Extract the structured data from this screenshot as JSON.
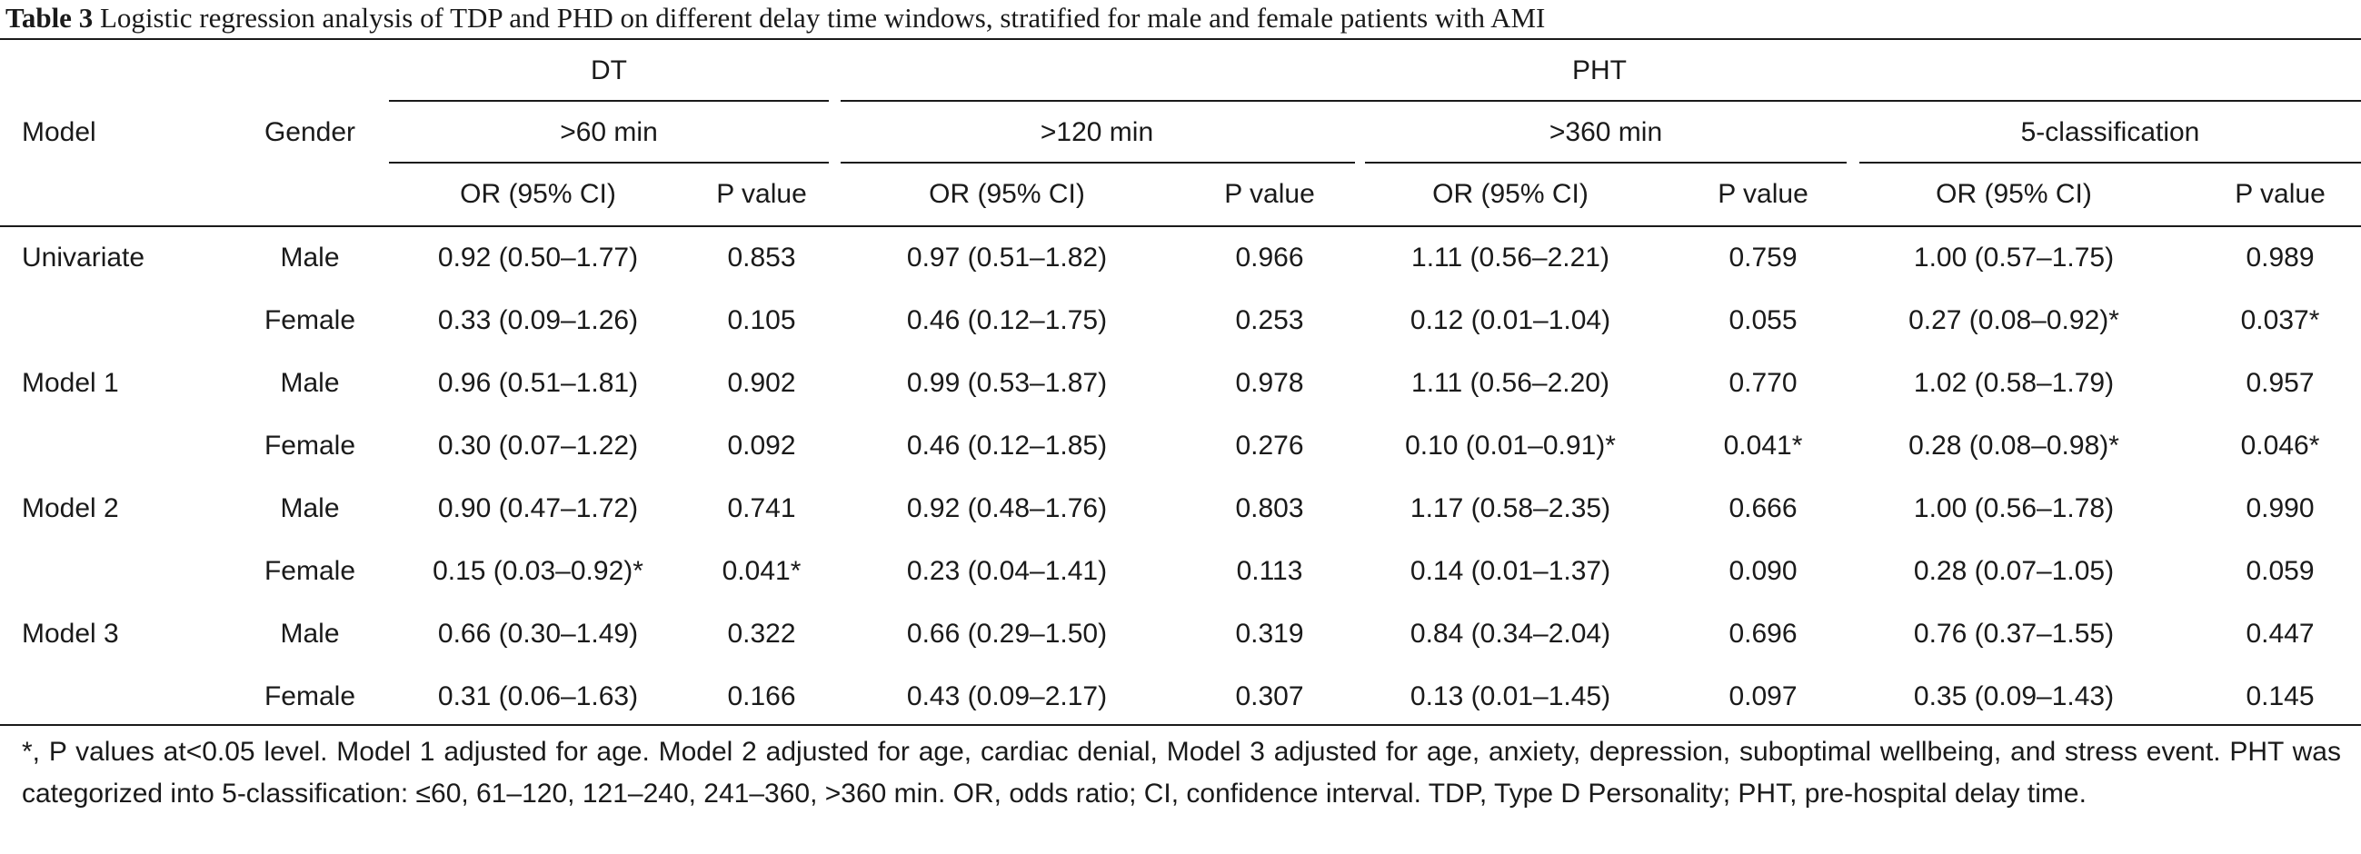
{
  "caption": {
    "label": "Table 3",
    "text": "Logistic regression analysis of TDP and PHD on different delay time windows, stratified for male and female patients with AMI"
  },
  "header": {
    "model": "Model",
    "gender": "Gender",
    "dt": "DT",
    "pht": "PHT",
    "windows": [
      ">60 min",
      ">120 min",
      ">360 min",
      "5-classification"
    ],
    "or": "OR (95% CI)",
    "p": "P value"
  },
  "rows": [
    {
      "model": "Univariate",
      "gender": "Male",
      "v": [
        "0.92 (0.50–1.77)",
        "0.853",
        "0.97 (0.51–1.82)",
        "0.966",
        "1.11 (0.56–2.21)",
        "0.759",
        "1.00 (0.57–1.75)",
        "0.989"
      ]
    },
    {
      "model": "",
      "gender": "Female",
      "v": [
        "0.33 (0.09–1.26)",
        "0.105",
        "0.46 (0.12–1.75)",
        "0.253",
        "0.12 (0.01–1.04)",
        "0.055",
        "0.27 (0.08–0.92)*",
        "0.037*"
      ]
    },
    {
      "model": "Model 1",
      "gender": "Male",
      "v": [
        "0.96 (0.51–1.81)",
        "0.902",
        "0.99 (0.53–1.87)",
        "0.978",
        "1.11 (0.56–2.20)",
        "0.770",
        "1.02 (0.58–1.79)",
        "0.957"
      ]
    },
    {
      "model": "",
      "gender": "Female",
      "v": [
        "0.30 (0.07–1.22)",
        "0.092",
        "0.46 (0.12–1.85)",
        "0.276",
        "0.10 (0.01–0.91)*",
        "0.041*",
        "0.28 (0.08–0.98)*",
        "0.046*"
      ]
    },
    {
      "model": "Model 2",
      "gender": "Male",
      "v": [
        "0.90 (0.47–1.72)",
        "0.741",
        "0.92 (0.48–1.76)",
        "0.803",
        "1.17 (0.58–2.35)",
        "0.666",
        "1.00 (0.56–1.78)",
        "0.990"
      ]
    },
    {
      "model": "",
      "gender": "Female",
      "v": [
        "0.15 (0.03–0.92)*",
        "0.041*",
        "0.23 (0.04–1.41)",
        "0.113",
        "0.14 (0.01–1.37)",
        "0.090",
        "0.28 (0.07–1.05)",
        "0.059"
      ]
    },
    {
      "model": "Model 3",
      "gender": "Male",
      "v": [
        "0.66 (0.30–1.49)",
        "0.322",
        "0.66 (0.29–1.50)",
        "0.319",
        "0.84 (0.34–2.04)",
        "0.696",
        "0.76 (0.37–1.55)",
        "0.447"
      ]
    },
    {
      "model": "",
      "gender": "Female",
      "v": [
        "0.31 (0.06–1.63)",
        "0.166",
        "0.43 (0.09–2.17)",
        "0.307",
        "0.13 (0.01–1.45)",
        "0.097",
        "0.35 (0.09–1.43)",
        "0.145"
      ]
    }
  ],
  "footnote": "*, P values at<0.05 level. Model 1 adjusted for age. Model 2 adjusted for age, cardiac denial, Model 3 adjusted for age, anxiety, depression, suboptimal wellbeing, and stress event. PHT was categorized into 5-classification: ≤60, 61–120, 121–240, 241–360, >360 min. OR, odds ratio; CI, confidence interval. TDP, Type D Personality; PHT, pre-hospital delay time."
}
